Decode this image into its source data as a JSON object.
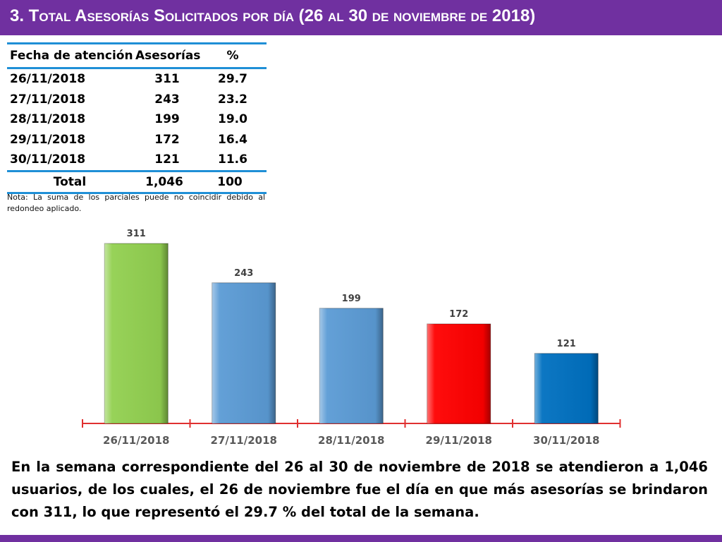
{
  "slide": {
    "title": "3.  Total Asesorías Solicitados por día  (26 al 30 de noviembre de 2018)"
  },
  "table": {
    "headers": [
      "Fecha de atención",
      "Asesorías",
      "%"
    ],
    "rows": [
      [
        "26/11/2018",
        "311",
        "29.7"
      ],
      [
        "27/11/2018",
        "243",
        "23.2"
      ],
      [
        "28/11/2018",
        "199",
        "19.0"
      ],
      [
        "29/11/2018",
        "172",
        "16.4"
      ],
      [
        "30/11/2018",
        "121",
        "11.6"
      ]
    ],
    "total": [
      "Total",
      "1,046",
      "100"
    ],
    "note": "Nota: La suma de los parciales puede no coincidir debido al redondeo aplicado."
  },
  "chart_data": {
    "type": "bar",
    "categories": [
      "26/11/2018",
      "27/11/2018",
      "28/11/2018",
      "29/11/2018",
      "30/11/2018"
    ],
    "values": [
      311,
      243,
      199,
      172,
      121
    ],
    "data_labels": [
      "311",
      "243",
      "199",
      "172",
      "121"
    ],
    "colors": [
      "#92d050",
      "#5b9bd5",
      "#5b9bd5",
      "#ff0000",
      "#0070c0"
    ],
    "axis_color": "#e03030",
    "label_color": "#595959",
    "ylim": [
      0,
      340
    ],
    "grid": false,
    "legend": "none"
  },
  "summary": "En la semana correspondiente del 26 al 30 de noviembre de 2018 se atendieron a 1,046 usuarios, de los cuales, el 26 de noviembre fue el día en que más asesorías se brindaron con 311, lo que representó el 29.7 % del total de la semana."
}
